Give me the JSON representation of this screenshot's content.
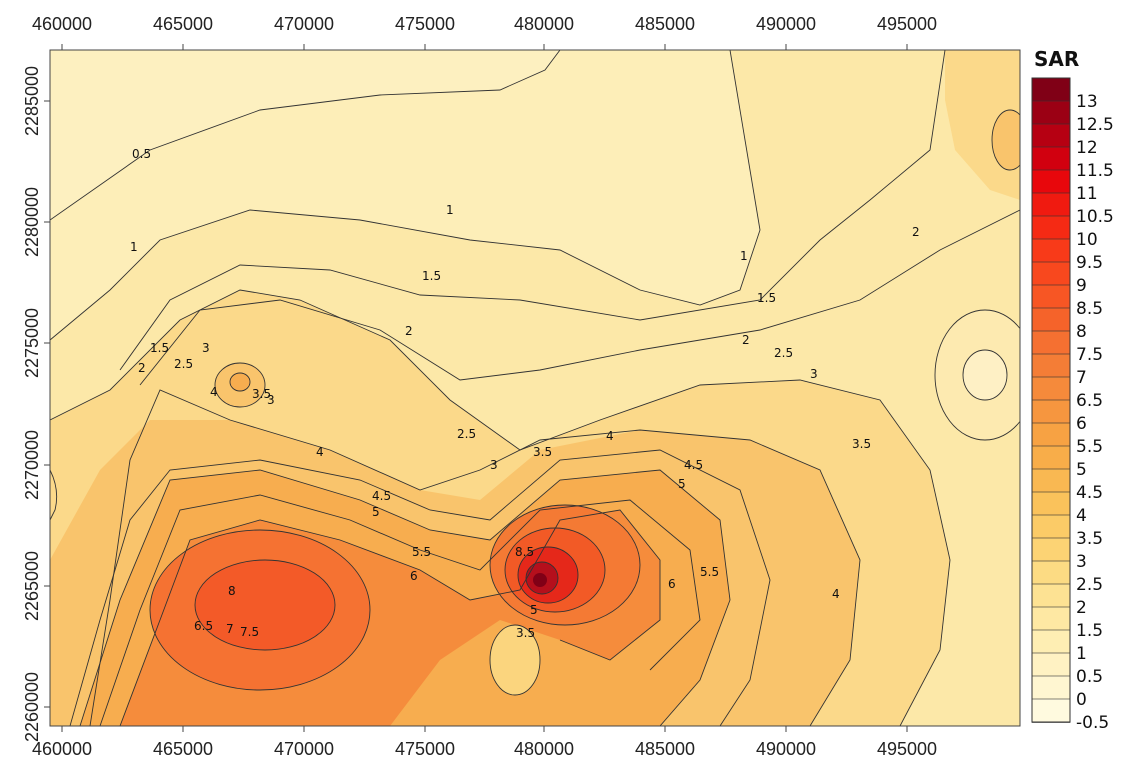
{
  "map": {
    "x_ticks": [
      "460000",
      "465000",
      "470000",
      "475000",
      "480000",
      "485000",
      "490000",
      "495000"
    ],
    "y_ticks": [
      "2285000",
      "2280000",
      "2275000",
      "2270000",
      "2265000",
      "2260000"
    ],
    "contour_labels": [
      "0.5",
      "1",
      "1",
      "1",
      "1.5",
      "1.5",
      "1.5",
      "2",
      "2",
      "2",
      "2",
      "2.5",
      "2.5",
      "2.5",
      "3",
      "3",
      "3",
      "3",
      "3.5",
      "3.5",
      "3.5",
      "4",
      "4",
      "4",
      "4",
      "4.5",
      "4.5",
      "5",
      "5",
      "5.5",
      "5.5",
      "6",
      "6",
      "7",
      "7.5",
      "8",
      "3.5",
      "5",
      "6.5",
      "8.5"
    ]
  },
  "legend": {
    "title": "SAR",
    "levels": [
      "13",
      "12.5",
      "12",
      "11.5",
      "11",
      "10.5",
      "10",
      "9.5",
      "9",
      "8.5",
      "8",
      "7.5",
      "7",
      "6.5",
      "6",
      "5.5",
      "5",
      "4.5",
      "4",
      "3.5",
      "3",
      "2.5",
      "2",
      "1.5",
      "1",
      "0.5",
      "0",
      "-0.5"
    ],
    "colors": [
      "#800016",
      "#9b0014",
      "#b60012",
      "#d1000f",
      "#e8070c",
      "#f01a10",
      "#f52a14",
      "#f83a19",
      "#f8481e",
      "#f75624",
      "#f5632a",
      "#f57031",
      "#f47d36",
      "#f58a3b",
      "#f6963f",
      "#f7a243",
      "#f8ad49",
      "#f9b852",
      "#fac25b",
      "#fbcb67",
      "#fcd374",
      "#fcdb83",
      "#fde293",
      "#fee8a3",
      "#feeeb3",
      "#fff2c3",
      "#fff6d1",
      "#fffadf"
    ]
  }
}
